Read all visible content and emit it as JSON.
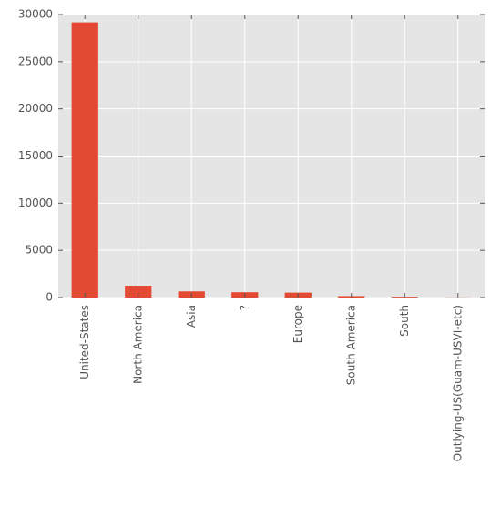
{
  "chart_data": {
    "type": "bar",
    "categories": [
      "United-States",
      "North America",
      "Asia",
      "?",
      "Europe",
      "South America",
      "South",
      "Outlying-US(Guam-USVI-etc)"
    ],
    "values": [
      29170,
      1250,
      650,
      560,
      520,
      150,
      80,
      14
    ],
    "color": "#e24a33",
    "ylim": [
      0,
      30000
    ],
    "yticks": [
      0,
      5000,
      10000,
      15000,
      20000,
      25000,
      30000
    ],
    "grid": true
  }
}
